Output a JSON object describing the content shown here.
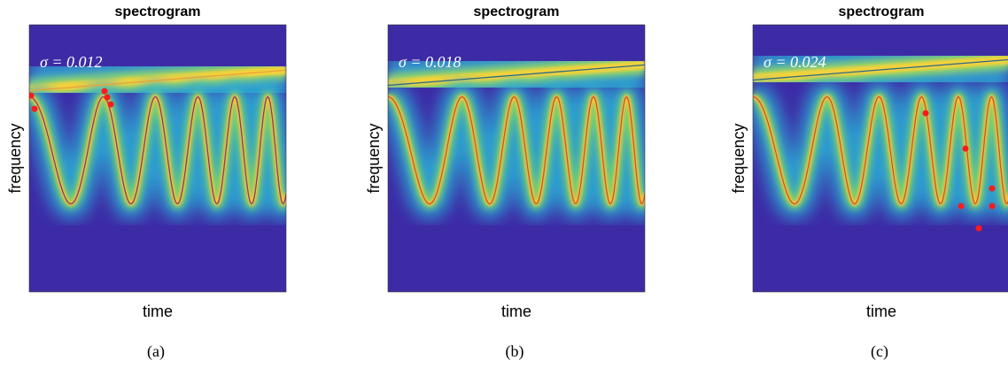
{
  "panels": [
    {
      "title": "spectrogram",
      "annotation": "σ = 0.012",
      "x_label": "time",
      "y_label": "frequency",
      "caption": "(a)"
    },
    {
      "title": "spectrogram",
      "annotation": "σ = 0.018",
      "x_label": "time",
      "y_label": "frequency",
      "caption": "(b)"
    },
    {
      "title": "spectrogram",
      "annotation": "σ = 0.024",
      "x_label": "time",
      "y_label": "frequency",
      "caption": "(c)"
    }
  ]
}
